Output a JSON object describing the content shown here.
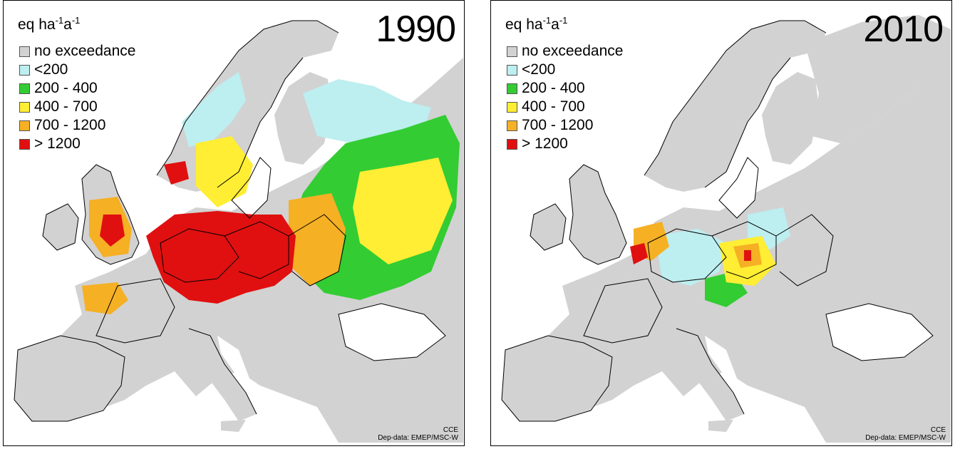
{
  "unit_label": {
    "base": "eq ha",
    "exp1": "-1",
    "mid": "a",
    "exp2": "-1"
  },
  "legend": [
    {
      "label": "no exceedance",
      "color": "#d2d2d2"
    },
    {
      "label": "<200",
      "color": "#bdeef0"
    },
    {
      "label": "200 - 400",
      "color": "#33cc33"
    },
    {
      "label": "400 - 700",
      "color": "#ffee33"
    },
    {
      "label": "700 - 1200",
      "color": "#f5b024"
    },
    {
      "label": "> 1200",
      "color": "#e01010"
    }
  ],
  "maps": [
    {
      "year": "1990",
      "credit_org": "CCE",
      "credit_data": "Dep-data: EMEP/MSC-W"
    },
    {
      "year": "2010",
      "credit_org": "CCE",
      "credit_data": "Dep-data: EMEP/MSC-W"
    }
  ],
  "colors": {
    "land": "#d2d2d2",
    "sea": "#ffffff",
    "border": "#000000"
  }
}
